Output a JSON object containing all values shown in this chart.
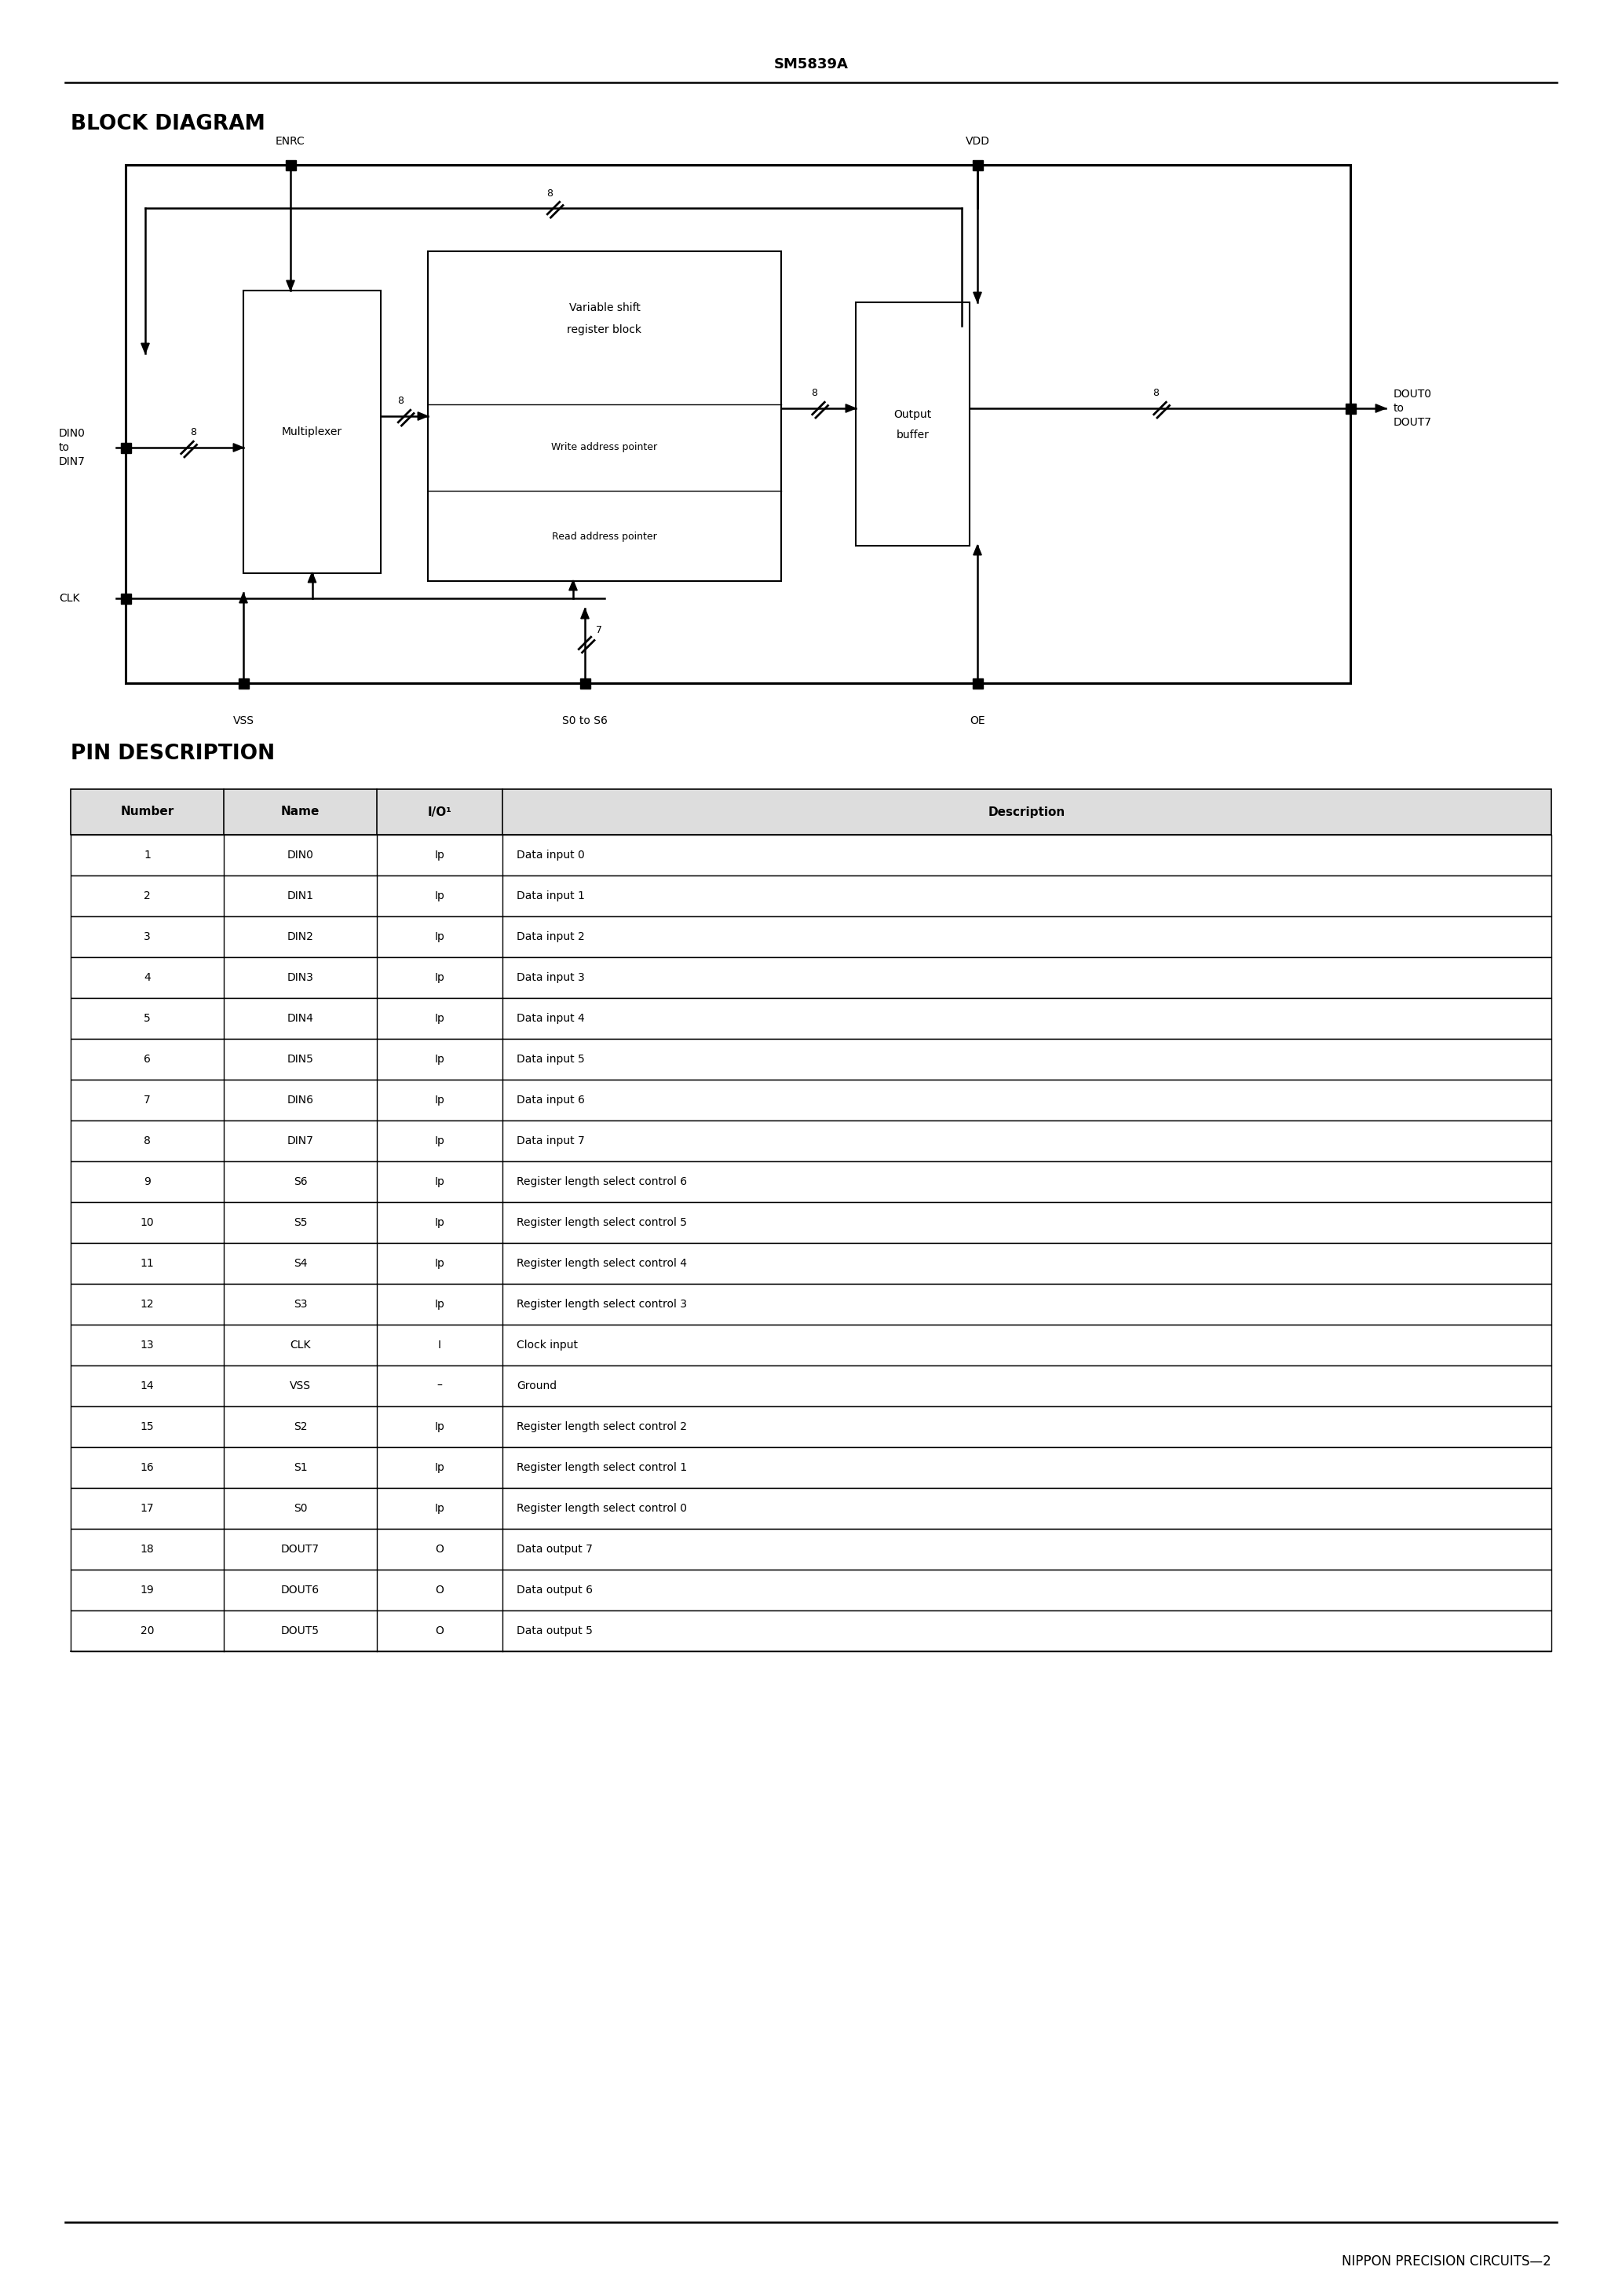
{
  "title": "SM5839A",
  "block_diagram_title": "BLOCK DIAGRAM",
  "pin_description_title": "PIN DESCRIPTION",
  "footer": "NIPPON PRECISION CIRCUITS—2",
  "table_headers": [
    "Number",
    "Name",
    "I/O¹",
    "Description"
  ],
  "table_rows": [
    [
      "1",
      "DIN0",
      "Ip",
      "Data input 0"
    ],
    [
      "2",
      "DIN1",
      "Ip",
      "Data input 1"
    ],
    [
      "3",
      "DIN2",
      "Ip",
      "Data input 2"
    ],
    [
      "4",
      "DIN3",
      "Ip",
      "Data input 3"
    ],
    [
      "5",
      "DIN4",
      "Ip",
      "Data input 4"
    ],
    [
      "6",
      "DIN5",
      "Ip",
      "Data input 5"
    ],
    [
      "7",
      "DIN6",
      "Ip",
      "Data input 6"
    ],
    [
      "8",
      "DIN7",
      "Ip",
      "Data input 7"
    ],
    [
      "9",
      "S6",
      "Ip",
      "Register length select control 6"
    ],
    [
      "10",
      "S5",
      "Ip",
      "Register length select control 5"
    ],
    [
      "11",
      "S4",
      "Ip",
      "Register length select control 4"
    ],
    [
      "12",
      "S3",
      "Ip",
      "Register length select control 3"
    ],
    [
      "13",
      "CLK",
      "I",
      "Clock input"
    ],
    [
      "14",
      "VSS",
      "–",
      "Ground"
    ],
    [
      "15",
      "S2",
      "Ip",
      "Register length select control 2"
    ],
    [
      "16",
      "S1",
      "Ip",
      "Register length select control 1"
    ],
    [
      "17",
      "S0",
      "Ip",
      "Register length select control 0"
    ],
    [
      "18",
      "DOUT7",
      "O",
      "Data output 7"
    ],
    [
      "19",
      "DOUT6",
      "O",
      "Data output 6"
    ],
    [
      "20",
      "DOUT5",
      "O",
      "Data output 5"
    ]
  ],
  "bg_color": "#ffffff",
  "text_color": "#000000"
}
